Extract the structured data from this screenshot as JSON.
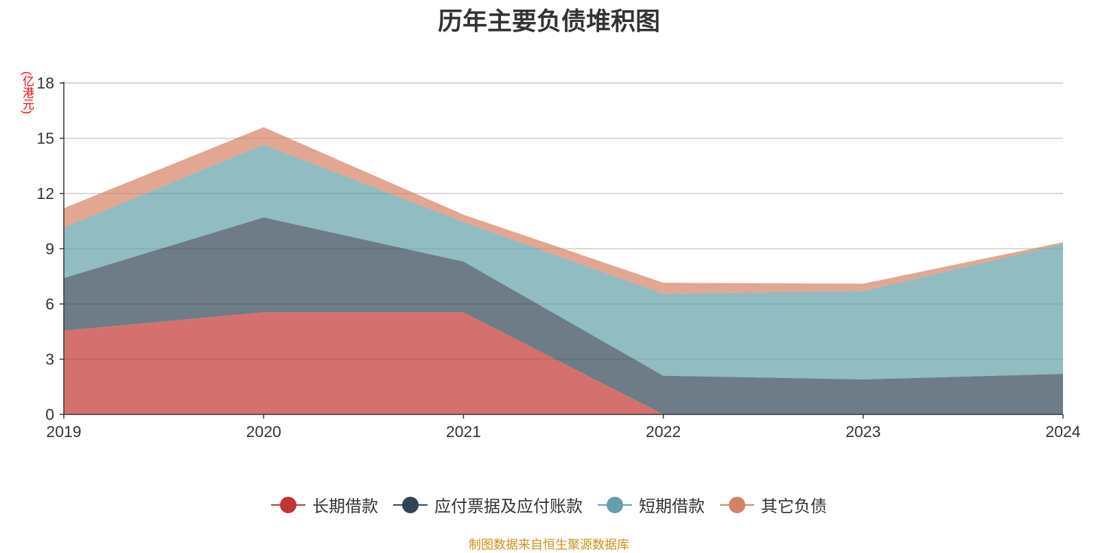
{
  "chart_data": {
    "type": "area",
    "stacked": true,
    "title": "历年主要负债堆积图",
    "unit_label": "(亿港元)",
    "x": [
      "2019",
      "2020",
      "2021",
      "2022",
      "2023",
      "2024"
    ],
    "ylim": [
      0,
      18
    ],
    "yticks": [
      0,
      3,
      6,
      9,
      12,
      15,
      18
    ],
    "grid": true,
    "legend_position": "bottom",
    "series": [
      {
        "name": "长期借款",
        "color": "#c23531",
        "values": [
          4.55,
          5.55,
          5.55,
          0,
          0,
          0
        ]
      },
      {
        "name": "应付票据及应付账款",
        "color": "#2f4554",
        "values": [
          2.85,
          5.15,
          2.75,
          2.1,
          1.9,
          2.2
        ]
      },
      {
        "name": "短期借款",
        "color": "#61a0a8",
        "values": [
          2.75,
          3.95,
          2.15,
          4.45,
          4.8,
          7.05
        ]
      },
      {
        "name": "其它负债",
        "color": "#d48265",
        "values": [
          1.05,
          0.95,
          0.4,
          0.6,
          0.4,
          0.1
        ]
      }
    ]
  },
  "footer": "制图数据来自恒生聚源数据库"
}
